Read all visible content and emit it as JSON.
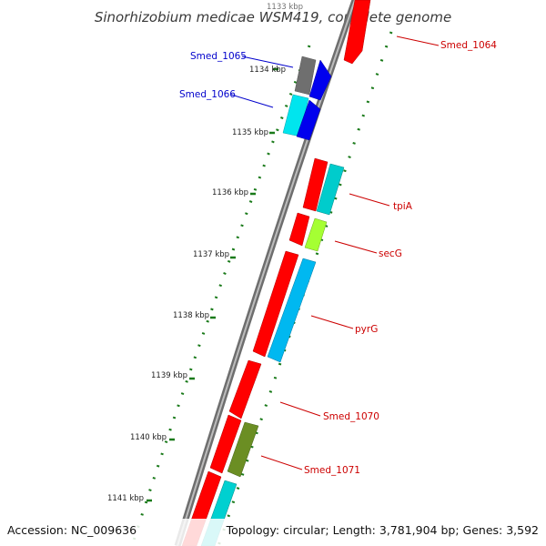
{
  "title": "Sinorhizobium medicae WSM419, complete genome",
  "footer": {
    "accession": "Accession: NC_009636",
    "summary": "Topology: circular; Length: 3,781,904 bp; Genes: 3,592"
  },
  "ticks": [
    "1133 kbp",
    "1134 kbp",
    "1135 kbp",
    "1136 kbp",
    "1137 kbp",
    "1138 kbp",
    "1139 kbp",
    "1140 kbp",
    "1141 kbp"
  ],
  "genes": [
    {
      "label": "Smed_1064",
      "color": "#ff0000"
    },
    {
      "label": "Smed_1065",
      "color": "#777777"
    },
    {
      "label": "Smed_1066",
      "color": "#00ffff"
    },
    {
      "label": "tpiA",
      "color": "#ff0000"
    },
    {
      "label": "secG",
      "color": "#ff0000"
    },
    {
      "label": "pyrG",
      "color": "#ff0000"
    },
    {
      "label": "Smed_1070",
      "color": "#ff0000"
    },
    {
      "label": "Smed_1071",
      "color": "#ff0000"
    }
  ],
  "colors": {
    "label_red": "#cc0000",
    "label_blue": "#0000cc",
    "tick_green": "#1a7a1a",
    "backbone": "#8a8a8a"
  }
}
